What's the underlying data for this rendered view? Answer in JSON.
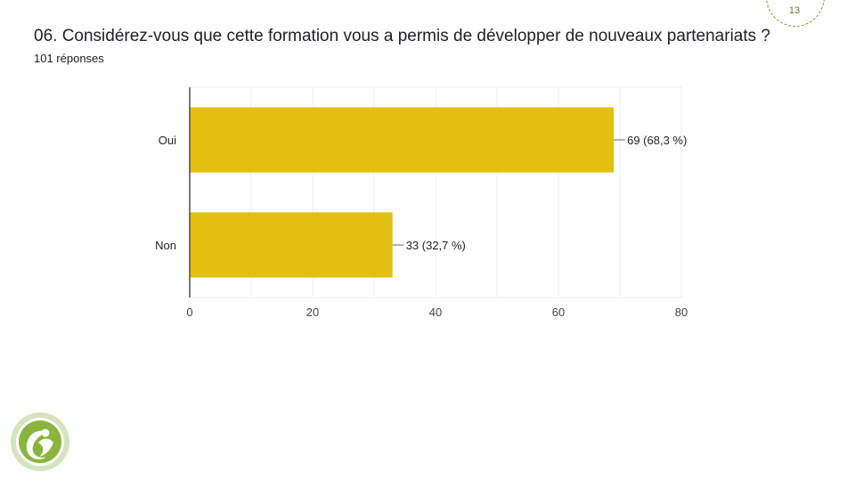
{
  "header": {
    "title": "06. Considérez-vous que cette formation vous a permis de développer de nouveaux partenariats ?",
    "responses": "101 réponses",
    "page_number": "13"
  },
  "chart_data": {
    "type": "bar",
    "orientation": "horizontal",
    "categories": [
      "Oui",
      "Non"
    ],
    "values": [
      69,
      33
    ],
    "data_labels": [
      "69 (68,3 %)",
      "33 (32,7 %)"
    ],
    "xlim": [
      0,
      80
    ],
    "xticks": [
      "0",
      "20",
      "40",
      "60",
      "80"
    ],
    "grid": true,
    "bar_color": "#e2c012"
  },
  "colors": {
    "accent": "#7aa03a",
    "grid": "#ececec",
    "axis": "#333333"
  },
  "logo": {
    "icon": "leaf-figure-logo-icon"
  }
}
